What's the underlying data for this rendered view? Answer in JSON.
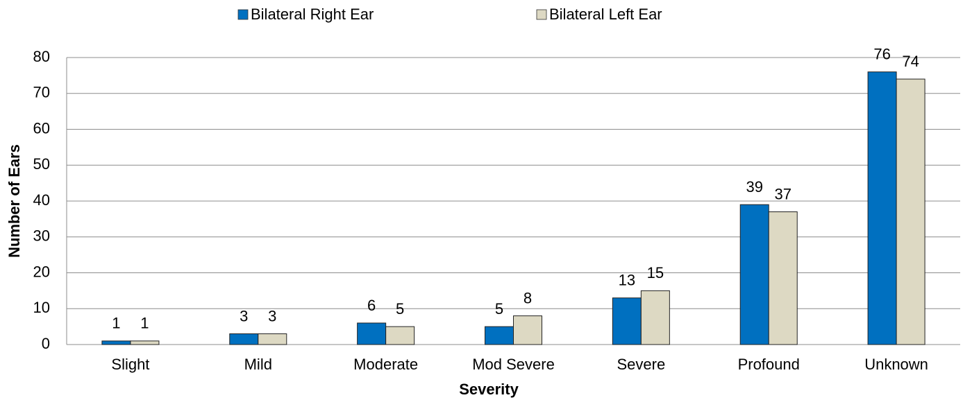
{
  "chart_data": {
    "type": "bar",
    "x_label": "Severity",
    "y_label": "Number of Ears",
    "categories": [
      "Slight",
      "Mild",
      "Moderate",
      "Mod Severe",
      "Severe",
      "Profound",
      "Unknown"
    ],
    "series": [
      {
        "name": "Bilateral Right Ear",
        "color": "#0070c0",
        "values": [
          1,
          3,
          6,
          5,
          13,
          39,
          76
        ]
      },
      {
        "name": "Bilateral Left Ear",
        "color": "#ddd9c3",
        "values": [
          1,
          3,
          5,
          8,
          15,
          37,
          74
        ]
      }
    ],
    "ylim": [
      0,
      80
    ],
    "yticks": [
      0,
      10,
      20,
      30,
      40,
      50,
      60,
      70,
      80
    ],
    "grid": true,
    "legend": "top"
  }
}
